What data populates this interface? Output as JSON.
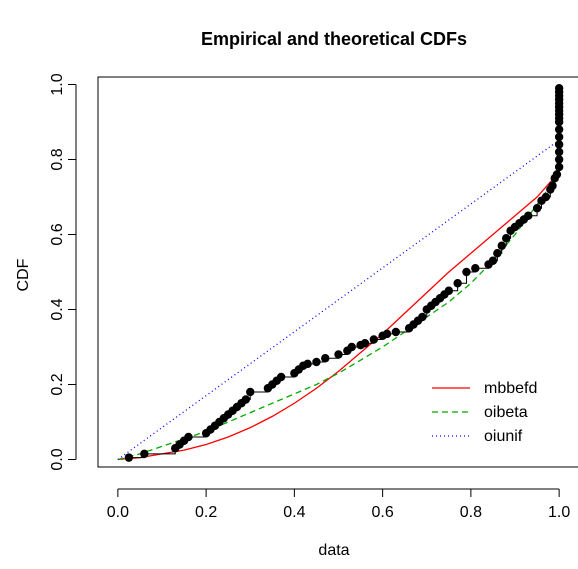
{
  "chart_data": {
    "type": "scatter",
    "title": "Empirical and theoretical CDFs",
    "xlabel": "data",
    "ylabel": "CDF",
    "xlim": [
      0.0,
      1.0
    ],
    "ylim": [
      0.0,
      1.0
    ],
    "xticks": [
      "0.0",
      "0.2",
      "0.4",
      "0.6",
      "0.8",
      "1.0"
    ],
    "yticks": [
      "0.0",
      "0.2",
      "0.4",
      "0.6",
      "0.8",
      "1.0"
    ],
    "grid": false,
    "legend_position": "bottom-right",
    "empirical": {
      "x": [
        0.025,
        0.06,
        0.13,
        0.14,
        0.15,
        0.16,
        0.2,
        0.21,
        0.22,
        0.23,
        0.24,
        0.25,
        0.26,
        0.27,
        0.28,
        0.29,
        0.3,
        0.34,
        0.35,
        0.36,
        0.37,
        0.4,
        0.41,
        0.42,
        0.43,
        0.45,
        0.47,
        0.5,
        0.52,
        0.53,
        0.55,
        0.56,
        0.58,
        0.6,
        0.61,
        0.63,
        0.66,
        0.67,
        0.68,
        0.69,
        0.7,
        0.71,
        0.72,
        0.73,
        0.74,
        0.75,
        0.77,
        0.79,
        0.81,
        0.84,
        0.85,
        0.86,
        0.87,
        0.88,
        0.89,
        0.9,
        0.91,
        0.92,
        0.93,
        0.95,
        0.96,
        0.97,
        0.98,
        0.985,
        0.99,
        0.995,
        1.0,
        1.0,
        1.0,
        1.0,
        1.0,
        1.0,
        1.0,
        1.0,
        1.0,
        1.0,
        1.0,
        1.0,
        1.0,
        1.0,
        1.0,
        1.0
      ],
      "y": [
        0.005,
        0.015,
        0.03,
        0.04,
        0.05,
        0.06,
        0.07,
        0.08,
        0.09,
        0.1,
        0.11,
        0.12,
        0.13,
        0.14,
        0.15,
        0.16,
        0.18,
        0.19,
        0.2,
        0.21,
        0.22,
        0.23,
        0.24,
        0.25,
        0.255,
        0.26,
        0.27,
        0.28,
        0.29,
        0.3,
        0.305,
        0.31,
        0.32,
        0.33,
        0.335,
        0.34,
        0.35,
        0.36,
        0.37,
        0.38,
        0.4,
        0.41,
        0.42,
        0.43,
        0.44,
        0.45,
        0.47,
        0.5,
        0.51,
        0.52,
        0.53,
        0.55,
        0.57,
        0.59,
        0.61,
        0.62,
        0.63,
        0.64,
        0.65,
        0.67,
        0.69,
        0.7,
        0.72,
        0.73,
        0.75,
        0.76,
        0.78,
        0.8,
        0.82,
        0.84,
        0.86,
        0.88,
        0.9,
        0.91,
        0.92,
        0.93,
        0.94,
        0.95,
        0.96,
        0.97,
        0.98,
        0.99
      ]
    },
    "series": [
      {
        "name": "mbbefd",
        "color": "#ff0000",
        "dash": "solid",
        "x": [
          0.0,
          0.05,
          0.1,
          0.15,
          0.2,
          0.25,
          0.3,
          0.35,
          0.4,
          0.45,
          0.5,
          0.55,
          0.6,
          0.65,
          0.7,
          0.75,
          0.8,
          0.85,
          0.9,
          0.95,
          0.98,
          0.995,
          1.0
        ],
        "y": [
          0.0,
          0.005,
          0.015,
          0.025,
          0.04,
          0.06,
          0.085,
          0.115,
          0.15,
          0.19,
          0.235,
          0.285,
          0.335,
          0.39,
          0.445,
          0.5,
          0.55,
          0.6,
          0.65,
          0.7,
          0.74,
          0.76,
          1.0
        ]
      },
      {
        "name": "oibeta",
        "color": "#00aa00",
        "dash": "dashed",
        "x": [
          0.0,
          0.05,
          0.1,
          0.15,
          0.2,
          0.25,
          0.3,
          0.35,
          0.4,
          0.45,
          0.5,
          0.55,
          0.6,
          0.65,
          0.7,
          0.75,
          0.8,
          0.85,
          0.9,
          0.95,
          0.98,
          0.995,
          1.0
        ],
        "y": [
          0.0,
          0.015,
          0.035,
          0.055,
          0.075,
          0.1,
          0.125,
          0.15,
          0.175,
          0.2,
          0.23,
          0.265,
          0.3,
          0.34,
          0.38,
          0.42,
          0.47,
          0.53,
          0.6,
          0.68,
          0.73,
          0.75,
          1.0
        ]
      },
      {
        "name": "oiunif",
        "color": "#0000ff",
        "dash": "dotted",
        "x": [
          0.0,
          0.998,
          1.0
        ],
        "y": [
          0.0,
          0.85,
          1.0
        ]
      }
    ]
  }
}
